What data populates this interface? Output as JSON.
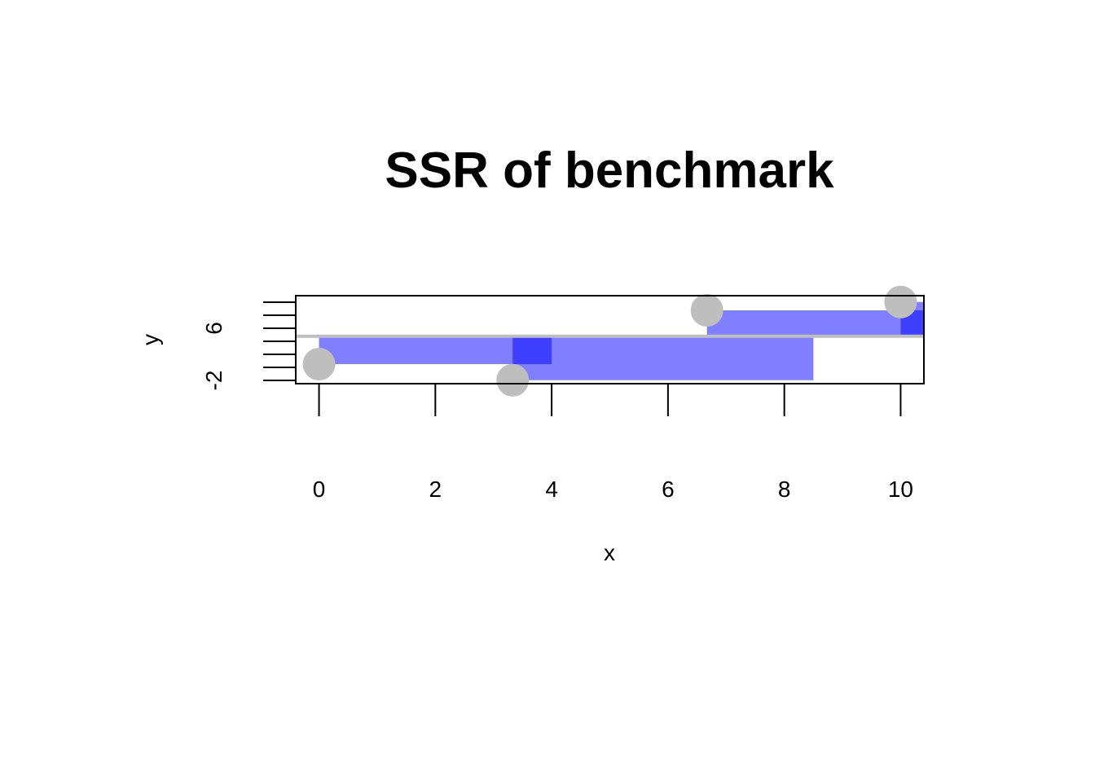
{
  "chart_data": {
    "type": "scatter",
    "title": "SSR of benchmark",
    "xlabel": "x",
    "ylabel": "y",
    "xlim": [
      -0.4,
      10.4
    ],
    "ylim": [
      -2.5,
      10.1
    ],
    "x_ticks": [
      0,
      2,
      4,
      6,
      8,
      10
    ],
    "x_tick_labels": [
      "0",
      "2",
      "4",
      "6",
      "8",
      "10"
    ],
    "y_ticks": [
      -2,
      0,
      2,
      4,
      6,
      8,
      10
    ],
    "y_tick_labels": [
      "-2",
      "6"
    ],
    "benchmark_line_y": 4.3,
    "points": [
      {
        "x": 0.0,
        "y": 0.3
      },
      {
        "x": 3.33,
        "y": -2.0
      },
      {
        "x": 6.67,
        "y": 8.0
      },
      {
        "x": 10.0,
        "y": 9.2
      }
    ],
    "residual_squares": [
      {
        "x0": 0.0,
        "x1": 4.0,
        "y0": 0.3,
        "y1": 4.3
      },
      {
        "x0": 3.33,
        "x1": 8.5,
        "y0": -2.0,
        "y1": 4.3
      },
      {
        "x0": 6.67,
        "x1": 10.4,
        "y0": 4.3,
        "y1": 8.0
      },
      {
        "x0": 10.0,
        "x1": 10.4,
        "y0": 4.3,
        "y1": 9.2
      }
    ],
    "colors": {
      "square_fill": "#0000ff",
      "point_fill": "#bebebe",
      "benchmark_line": "#bebebe"
    },
    "grid": false,
    "legend": "none"
  }
}
